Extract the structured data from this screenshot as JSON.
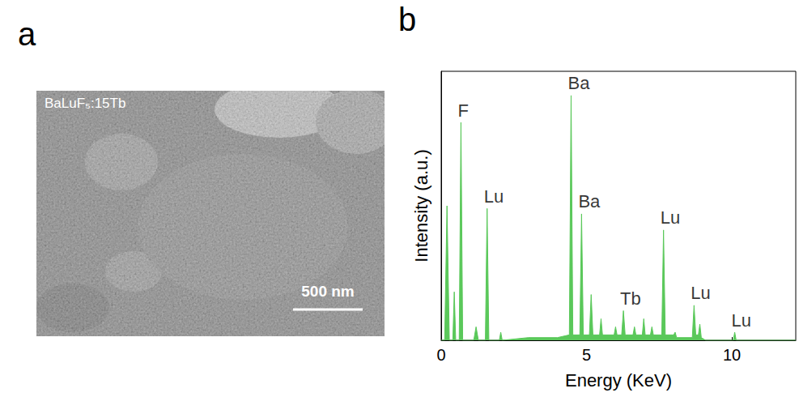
{
  "panel_a": {
    "letter": "a",
    "label": "BaLuF₅:15Tb",
    "scale_bar": "500 nm"
  },
  "chart_data": {
    "letter": "b",
    "type": "area",
    "x_label": "Energy (KeV)",
    "y_label": "Intensity (a.u.)",
    "x": [
      0,
      0.12,
      0.2,
      0.28,
      0.4,
      0.45,
      0.5,
      0.62,
      0.68,
      0.74,
      1.12,
      1.2,
      1.28,
      1.52,
      1.58,
      1.64,
      2.0,
      2.05,
      2.1,
      3.0,
      4.0,
      4.41,
      4.47,
      4.53,
      4.77,
      4.83,
      4.89,
      5.1,
      5.16,
      5.22,
      5.45,
      5.5,
      5.55,
      5.95,
      6.0,
      6.05,
      6.21,
      6.27,
      6.33,
      6.6,
      6.65,
      6.7,
      6.92,
      6.97,
      7.02,
      7.2,
      7.25,
      7.3,
      7.59,
      7.65,
      7.71,
      8.0,
      8.05,
      8.1,
      8.64,
      8.7,
      8.76,
      8.85,
      8.9,
      8.95,
      9.1,
      10.05,
      10.1,
      10.15,
      12.2
    ],
    "values": [
      0,
      0,
      50,
      0,
      0,
      18,
      0,
      0,
      81,
      0,
      0,
      5,
      0,
      0,
      49,
      0,
      0,
      3,
      0,
      1,
      1,
      2,
      91,
      2,
      2,
      47,
      2,
      2,
      17,
      2,
      2,
      8,
      2,
      2,
      5,
      2,
      2,
      11,
      2,
      2,
      5,
      2,
      2,
      8,
      2,
      2,
      5,
      2,
      2,
      41,
      2,
      2,
      3,
      1,
      1,
      13,
      2,
      2,
      6,
      1,
      0,
      0,
      3,
      0,
      0
    ],
    "color": "#5ac85a",
    "xlim": [
      0,
      12.2
    ],
    "xticks": [
      0,
      5,
      10
    ],
    "ylim": [
      0,
      100
    ],
    "tick_labels": "x",
    "grid": false,
    "annotations": [
      {
        "text": "F",
        "x": 0.68,
        "y": 81
      },
      {
        "text": "Lu",
        "x": 1.58,
        "y": 49
      },
      {
        "text": "Ba",
        "x": 4.47,
        "y": 91
      },
      {
        "text": "Ba",
        "x": 4.83,
        "y": 47
      },
      {
        "text": "Tb",
        "x": 6.27,
        "y": 11
      },
      {
        "text": "Lu",
        "x": 7.65,
        "y": 41
      },
      {
        "text": "Lu",
        "x": 8.7,
        "y": 13
      },
      {
        "text": "Lu",
        "x": 10.1,
        "y": 3
      }
    ]
  }
}
